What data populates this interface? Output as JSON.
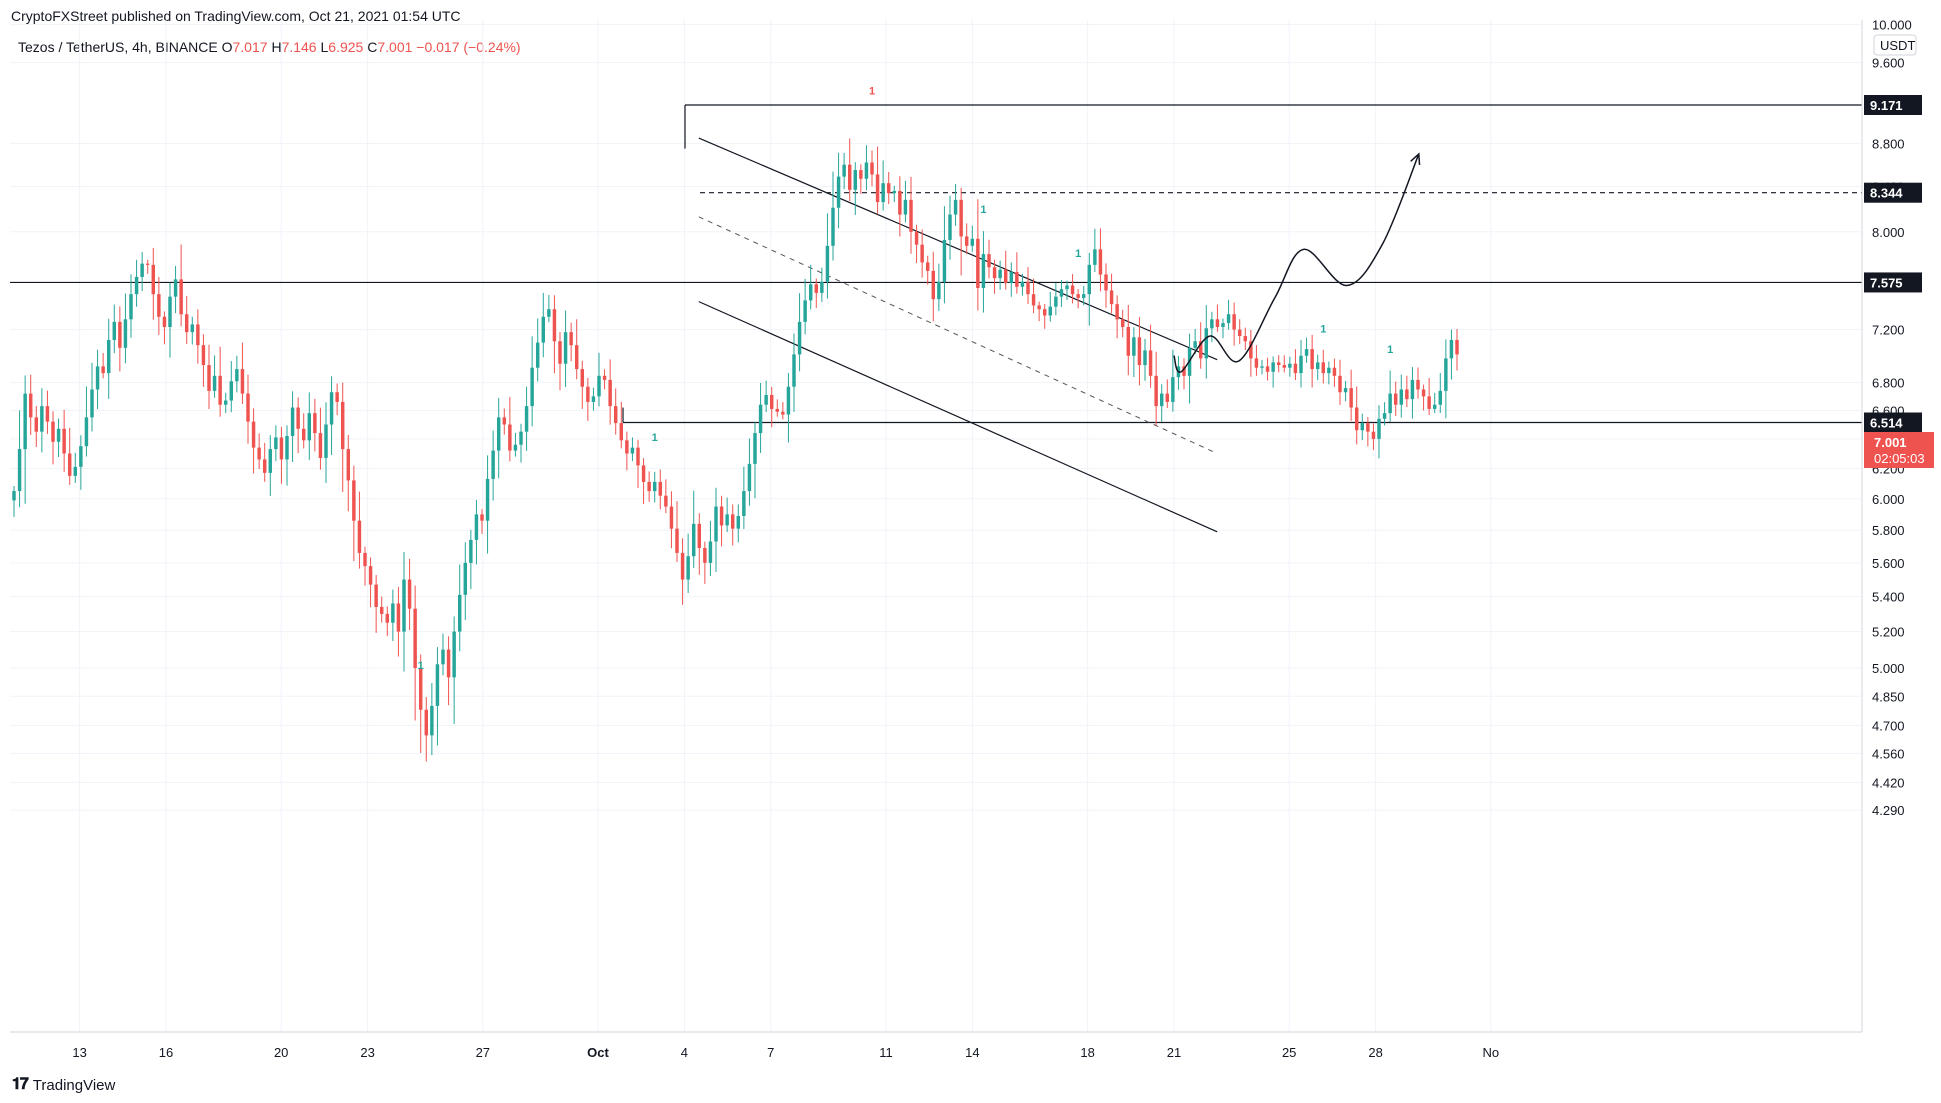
{
  "header": {
    "published": "CryptoFXStreet published on TradingView.com, Oct 21, 2021 01:54 UTC"
  },
  "ohlc": {
    "symbol": "Tezos / TetherUS, 4h, BINANCE",
    "open_label": "O",
    "open": "7.017",
    "high_label": "H",
    "high": "7.146",
    "low_label": "L",
    "low": "6.925",
    "close_label": "C",
    "close": "7.001",
    "change": "−0.017 (−0.24%)"
  },
  "footer": {
    "brand": "TradingView"
  },
  "colors": {
    "up": "#26a69a",
    "down": "#ef5350",
    "line": "#131722",
    "price_badge": "#ef5350",
    "level_badge": "#131722"
  },
  "chart_data": {
    "type": "candlestick",
    "interval": "4h",
    "quote_unit": "USDT",
    "ylim": [
      4.2,
      10.0
    ],
    "y_scale": "log",
    "y_ticks": [
      "10.000",
      "9.600",
      "8.800",
      "8.400",
      "8.000",
      "7.200",
      "6.800",
      "6.600",
      "6.400",
      "6.200",
      "6.000",
      "5.800",
      "5.600",
      "5.400",
      "5.200",
      "5.000",
      "4.850",
      "4.700",
      "4.560",
      "4.420",
      "4.290"
    ],
    "x_ticks": [
      "13",
      "16",
      "20",
      "23",
      "27",
      "Oct",
      "4",
      "7",
      "11",
      "14",
      "18",
      "21",
      "25",
      "28",
      "No"
    ],
    "current_price": "7.001",
    "countdown": "02:05:03",
    "levels": [
      {
        "label": "9.171",
        "value": 9.171,
        "style": "solid"
      },
      {
        "label": "8.344",
        "value": 8.344,
        "style": "dashed"
      },
      {
        "label": "7.575",
        "value": 7.575,
        "style": "solid"
      },
      {
        "label": "6.514",
        "value": 6.514,
        "style": "solid"
      }
    ],
    "series": [
      {
        "name": "XTZ/USDT",
        "values": [
          6.05,
          6.33,
          6.72,
          6.55,
          6.45,
          6.63,
          6.52,
          6.38,
          6.47,
          6.3,
          6.15,
          6.21,
          6.35,
          6.55,
          6.75,
          6.92,
          6.87,
          7.12,
          7.26,
          7.06,
          7.28,
          7.48,
          7.62,
          7.73,
          7.72,
          7.48,
          7.3,
          7.22,
          7.46,
          7.6,
          7.32,
          7.18,
          7.24,
          7.08,
          6.93,
          6.74,
          6.85,
          6.64,
          6.67,
          6.81,
          6.9,
          6.72,
          6.52,
          6.34,
          6.26,
          6.17,
          6.33,
          6.41,
          6.26,
          6.42,
          6.62,
          6.47,
          6.39,
          6.58,
          6.44,
          6.27,
          6.5,
          6.73,
          6.66,
          6.33,
          6.12,
          5.86,
          5.66,
          5.58,
          5.47,
          5.34,
          5.3,
          5.25,
          5.36,
          5.2,
          5.5,
          5.33,
          5.0,
          4.78,
          4.65,
          4.8,
          5.02,
          5.1,
          4.95,
          5.2,
          5.41,
          5.6,
          5.74,
          5.9,
          5.86,
          6.13,
          6.32,
          6.55,
          6.5,
          6.32,
          6.36,
          6.45,
          6.63,
          6.91,
          7.1,
          7.3,
          7.36,
          7.11,
          6.94,
          7.18,
          7.08,
          6.9,
          6.77,
          6.66,
          6.7,
          6.85,
          6.82,
          6.63,
          6.51,
          6.39,
          6.3,
          6.34,
          6.22,
          6.11,
          6.05,
          6.11,
          6.02,
          5.95,
          5.81,
          5.66,
          5.5,
          5.64,
          5.84,
          5.69,
          5.6,
          5.73,
          5.95,
          5.83,
          5.9,
          5.81,
          5.89,
          6.05,
          6.23,
          6.44,
          6.64,
          6.71,
          6.61,
          6.59,
          6.57,
          6.77,
          7.01,
          7.26,
          7.43,
          7.56,
          7.49,
          7.58,
          7.88,
          8.21,
          8.49,
          8.6,
          8.37,
          8.55,
          8.47,
          8.62,
          8.51,
          8.26,
          8.43,
          8.34,
          8.36,
          8.15,
          8.28,
          8.0,
          7.89,
          7.74,
          7.67,
          7.44,
          7.58,
          7.93,
          8.15,
          8.28,
          7.96,
          7.88,
          7.94,
          7.53,
          7.81,
          7.7,
          7.61,
          7.68,
          7.57,
          7.66,
          7.54,
          7.58,
          7.48,
          7.39,
          7.36,
          7.31,
          7.38,
          7.46,
          7.52,
          7.55,
          7.48,
          7.45,
          7.48,
          7.72,
          7.85,
          7.64,
          7.51,
          7.4,
          7.28,
          7.22,
          7.0,
          7.14,
          6.93,
          7.04,
          6.85,
          6.63,
          6.72,
          6.66,
          6.84,
          6.92,
          6.85,
          7.06,
          7.11,
          6.98,
          7.21,
          7.28,
          7.22,
          7.25,
          7.32,
          7.2,
          7.15,
          7.11,
          6.98,
          6.91,
          6.92,
          6.88,
          6.95,
          6.93,
          6.91,
          6.94,
          6.87,
          7.0,
          7.05,
          6.9,
          6.95,
          6.87,
          6.91,
          6.85,
          6.73,
          6.76,
          6.62,
          6.46,
          6.51,
          6.45,
          6.4,
          6.54,
          6.58,
          6.72,
          6.64,
          6.75,
          6.68,
          6.82,
          6.75,
          6.7,
          6.61,
          6.64,
          6.74,
          6.98,
          7.12,
          7.01
        ]
      }
    ],
    "channel": {
      "upper": [
        [
          "2021-10-04 12:00",
          8.85
        ],
        [
          "2021-10-22 12:00",
          6.97
        ]
      ],
      "middle": [
        [
          "2021-10-04 12:00",
          8.13
        ],
        [
          "2021-10-22 12:00",
          6.3
        ]
      ],
      "lower": [
        [
          "2021-10-04 12:00",
          7.42
        ],
        [
          "2021-10-22 12:00",
          5.79
        ]
      ]
    },
    "projection": [
      [
        "2021-10-21 00:00",
        7.001
      ],
      [
        "2021-10-21 06:00",
        6.88
      ],
      [
        "2021-10-22 06:00",
        7.15
      ],
      [
        "2021-10-23 06:00",
        6.96
      ],
      [
        "2021-10-24 12:00",
        7.45
      ],
      [
        "2021-10-25 12:00",
        7.85
      ],
      [
        "2021-10-27 00:00",
        7.55
      ],
      [
        "2021-10-28 06:00",
        7.9
      ],
      [
        "2021-10-29 12:00",
        8.7
      ]
    ],
    "annotations": [
      {
        "text": "1",
        "color": "#ef5350",
        "index": 154
      },
      {
        "text": "1",
        "color": "#26a69a",
        "index": 73
      },
      {
        "text": "1",
        "color": "#26a69a",
        "index": 115
      },
      {
        "text": "1",
        "color": "#26a69a",
        "index": 174
      },
      {
        "text": "1",
        "color": "#26a69a",
        "index": 191
      },
      {
        "text": "1",
        "color": "#26a69a",
        "index": 235
      },
      {
        "text": "1",
        "color": "#26a69a",
        "index": 247
      }
    ]
  }
}
